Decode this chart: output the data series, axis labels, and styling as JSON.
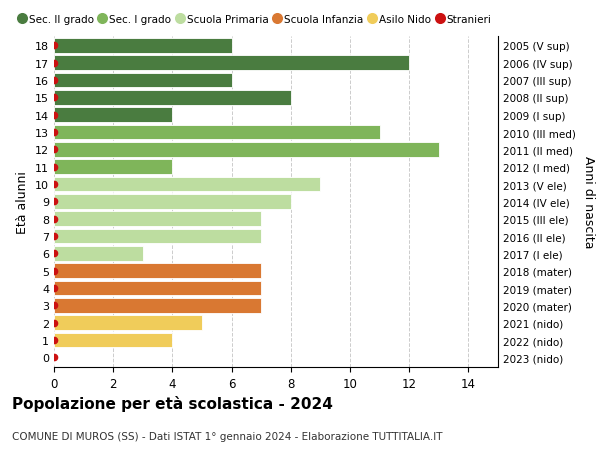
{
  "ages": [
    18,
    17,
    16,
    15,
    14,
    13,
    12,
    11,
    10,
    9,
    8,
    7,
    6,
    5,
    4,
    3,
    2,
    1,
    0
  ],
  "years": [
    "2005 (V sup)",
    "2006 (IV sup)",
    "2007 (III sup)",
    "2008 (II sup)",
    "2009 (I sup)",
    "2010 (III med)",
    "2011 (II med)",
    "2012 (I med)",
    "2013 (V ele)",
    "2014 (IV ele)",
    "2015 (III ele)",
    "2016 (II ele)",
    "2017 (I ele)",
    "2018 (mater)",
    "2019 (mater)",
    "2020 (mater)",
    "2021 (nido)",
    "2022 (nido)",
    "2023 (nido)"
  ],
  "values": [
    6,
    12,
    6,
    8,
    4,
    11,
    13,
    4,
    9,
    8,
    7,
    7,
    3,
    7,
    7,
    7,
    5,
    4,
    0
  ],
  "bar_colors": [
    "#4a7c40",
    "#4a7c40",
    "#4a7c40",
    "#4a7c40",
    "#4a7c40",
    "#7fb55a",
    "#7fb55a",
    "#7fb55a",
    "#bddda0",
    "#bddda0",
    "#bddda0",
    "#bddda0",
    "#bddda0",
    "#d97832",
    "#d97832",
    "#d97832",
    "#f0cc5a",
    "#f0cc5a",
    "#f0cc5a"
  ],
  "stranieri_color": "#cc1111",
  "legend_labels": [
    "Sec. II grado",
    "Sec. I grado",
    "Scuola Primaria",
    "Scuola Infanzia",
    "Asilo Nido",
    "Stranieri"
  ],
  "legend_colors": [
    "#4a7c40",
    "#7fb55a",
    "#bddda0",
    "#d97832",
    "#f0cc5a",
    "#cc1111"
  ],
  "ylabel": "Età alunni",
  "ylabel_right": "Anni di nascita",
  "title": "Popolazione per età scolastica - 2024",
  "subtitle": "COMUNE DI MUROS (SS) - Dati ISTAT 1° gennaio 2024 - Elaborazione TUTTITALIA.IT",
  "xlim": [
    0,
    15
  ],
  "xticks": [
    0,
    2,
    4,
    6,
    8,
    10,
    12,
    14
  ],
  "background_color": "#ffffff",
  "grid_color": "#cccccc"
}
